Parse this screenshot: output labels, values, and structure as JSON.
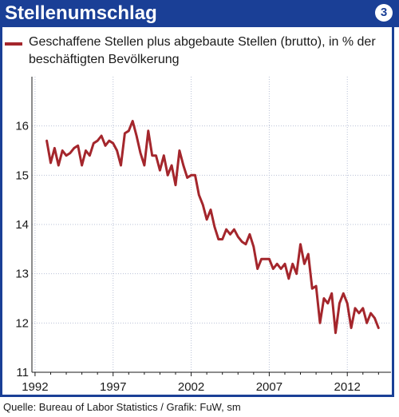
{
  "header": {
    "title": "Stellenumschlag",
    "badge": "3"
  },
  "source": "Quelle: Bureau of Labor Statistics / Grafik: FuW, sm",
  "colors": {
    "accent": "#1a3f96",
    "series": "#a4262c"
  },
  "chart_data": {
    "type": "line",
    "title": "Stellenumschlag",
    "legend_position": "top-left",
    "grid": true,
    "xlim": [
      1991.8,
      2014.8
    ],
    "ylim": [
      11,
      17
    ],
    "x_ticks": [
      1992,
      1997,
      2002,
      2007,
      2012
    ],
    "y_ticks": [
      11,
      12,
      13,
      14,
      15,
      16
    ],
    "series": [
      {
        "name": "Geschaffene Stellen plus abgebaute Stellen (brutto), in % der beschäftigten Bevölkerung",
        "x": [
          1992.75,
          1993.0,
          1993.25,
          1993.5,
          1993.75,
          1994.0,
          1994.25,
          1994.5,
          1994.75,
          1995.0,
          1995.25,
          1995.5,
          1995.75,
          1996.0,
          1996.25,
          1996.5,
          1996.75,
          1997.0,
          1997.25,
          1997.5,
          1997.75,
          1998.0,
          1998.25,
          1998.5,
          1998.75,
          1999.0,
          1999.25,
          1999.5,
          1999.75,
          2000.0,
          2000.25,
          2000.5,
          2000.75,
          2001.0,
          2001.25,
          2001.5,
          2001.75,
          2002.0,
          2002.25,
          2002.5,
          2002.75,
          2003.0,
          2003.25,
          2003.5,
          2003.75,
          2004.0,
          2004.25,
          2004.5,
          2004.75,
          2005.0,
          2005.25,
          2005.5,
          2005.75,
          2006.0,
          2006.25,
          2006.5,
          2006.75,
          2007.0,
          2007.25,
          2007.5,
          2007.75,
          2008.0,
          2008.25,
          2008.5,
          2008.75,
          2009.0,
          2009.25,
          2009.5,
          2009.75,
          2010.0,
          2010.25,
          2010.5,
          2010.75,
          2011.0,
          2011.25,
          2011.5,
          2011.75,
          2012.0,
          2012.25,
          2012.5,
          2012.75,
          2013.0,
          2013.25,
          2013.5,
          2013.75,
          2014.0
        ],
        "y": [
          15.7,
          15.25,
          15.55,
          15.2,
          15.5,
          15.4,
          15.45,
          15.55,
          15.6,
          15.2,
          15.5,
          15.4,
          15.65,
          15.7,
          15.8,
          15.6,
          15.7,
          15.65,
          15.5,
          15.2,
          15.85,
          15.9,
          16.1,
          15.8,
          15.45,
          15.2,
          15.9,
          15.4,
          15.4,
          15.1,
          15.4,
          15.0,
          15.2,
          14.8,
          15.5,
          15.2,
          14.95,
          15.0,
          15.0,
          14.6,
          14.4,
          14.1,
          14.3,
          13.95,
          13.7,
          13.7,
          13.9,
          13.8,
          13.9,
          13.75,
          13.65,
          13.6,
          13.8,
          13.55,
          13.1,
          13.3,
          13.3,
          13.3,
          13.1,
          13.2,
          13.1,
          13.2,
          12.9,
          13.2,
          13.0,
          13.6,
          13.2,
          13.4,
          12.7,
          12.75,
          12.0,
          12.5,
          12.4,
          12.6,
          11.8,
          12.4,
          12.6,
          12.4,
          11.9,
          12.3,
          12.2,
          12.3,
          12.0,
          12.2,
          12.1,
          11.9
        ]
      }
    ]
  }
}
